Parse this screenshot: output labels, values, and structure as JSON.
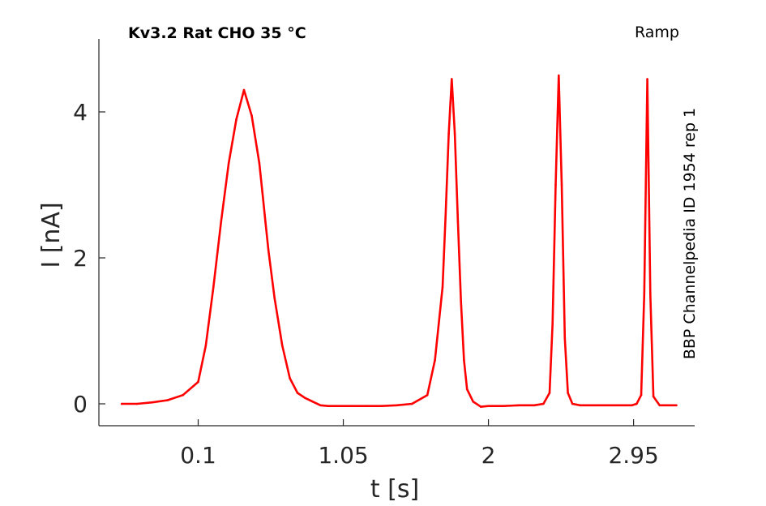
{
  "chart_data": {
    "type": "line",
    "title": "Kv3.2  Rat  CHO  35 °C",
    "protocol_label": "Ramp",
    "source_label": "BBP Channelpedia ID 1954 rep 1",
    "xlabel": "t [s]",
    "ylabel": "I [nA]",
    "xlim": [
      -0.55,
      3.35
    ],
    "ylim": [
      -0.3,
      5.0
    ],
    "xticks": [
      0.1,
      1.05,
      2,
      2.95
    ],
    "xtick_labels": [
      "0.1",
      "1.05",
      "2",
      "2.95"
    ],
    "yticks": [
      0,
      2,
      4
    ],
    "ytick_labels": [
      "0",
      "2",
      "4"
    ],
    "grid": false,
    "colors": {
      "trace": "#ff0000",
      "axis": "#262626"
    },
    "series": [
      {
        "x": [
          -0.4,
          -0.3,
          -0.2,
          -0.1,
          0.0,
          0.1,
          0.15,
          0.2,
          0.25,
          0.3,
          0.35,
          0.4,
          0.45,
          0.5,
          0.52,
          0.54,
          0.56,
          0.6,
          0.65,
          0.7,
          0.75,
          0.8,
          0.85,
          0.9,
          0.95,
          1.0,
          1.1,
          1.2,
          1.3,
          1.4,
          1.5,
          1.6,
          1.65,
          1.7,
          1.72,
          1.74,
          1.76,
          1.78,
          1.8,
          1.82,
          1.84,
          1.86,
          1.9,
          1.95,
          2.0,
          2.1,
          2.2,
          2.3,
          2.36,
          2.4,
          2.42,
          2.44,
          2.46,
          2.48,
          2.5,
          2.52,
          2.55,
          2.6,
          2.7,
          2.8,
          2.9,
          2.94,
          2.97,
          3.0,
          3.02,
          3.04,
          3.06,
          3.08,
          3.12,
          3.18,
          3.23
        ],
        "y": [
          0.0,
          0.0,
          0.02,
          0.05,
          0.12,
          0.3,
          0.8,
          1.6,
          2.5,
          3.3,
          3.9,
          4.3,
          3.95,
          3.3,
          2.9,
          2.5,
          2.1,
          1.45,
          0.8,
          0.35,
          0.15,
          0.08,
          0.03,
          -0.02,
          -0.03,
          -0.03,
          -0.03,
          -0.03,
          -0.03,
          -0.02,
          0.0,
          0.12,
          0.6,
          1.6,
          2.6,
          3.7,
          4.45,
          3.7,
          2.5,
          1.4,
          0.6,
          0.2,
          0.03,
          -0.04,
          -0.03,
          -0.03,
          -0.02,
          -0.02,
          0.0,
          0.15,
          1.1,
          3.0,
          4.5,
          3.0,
          0.9,
          0.15,
          0.0,
          -0.02,
          -0.02,
          -0.02,
          -0.02,
          -0.02,
          0.0,
          0.12,
          1.5,
          4.45,
          1.5,
          0.1,
          -0.02,
          -0.02,
          -0.02
        ]
      }
    ]
  }
}
